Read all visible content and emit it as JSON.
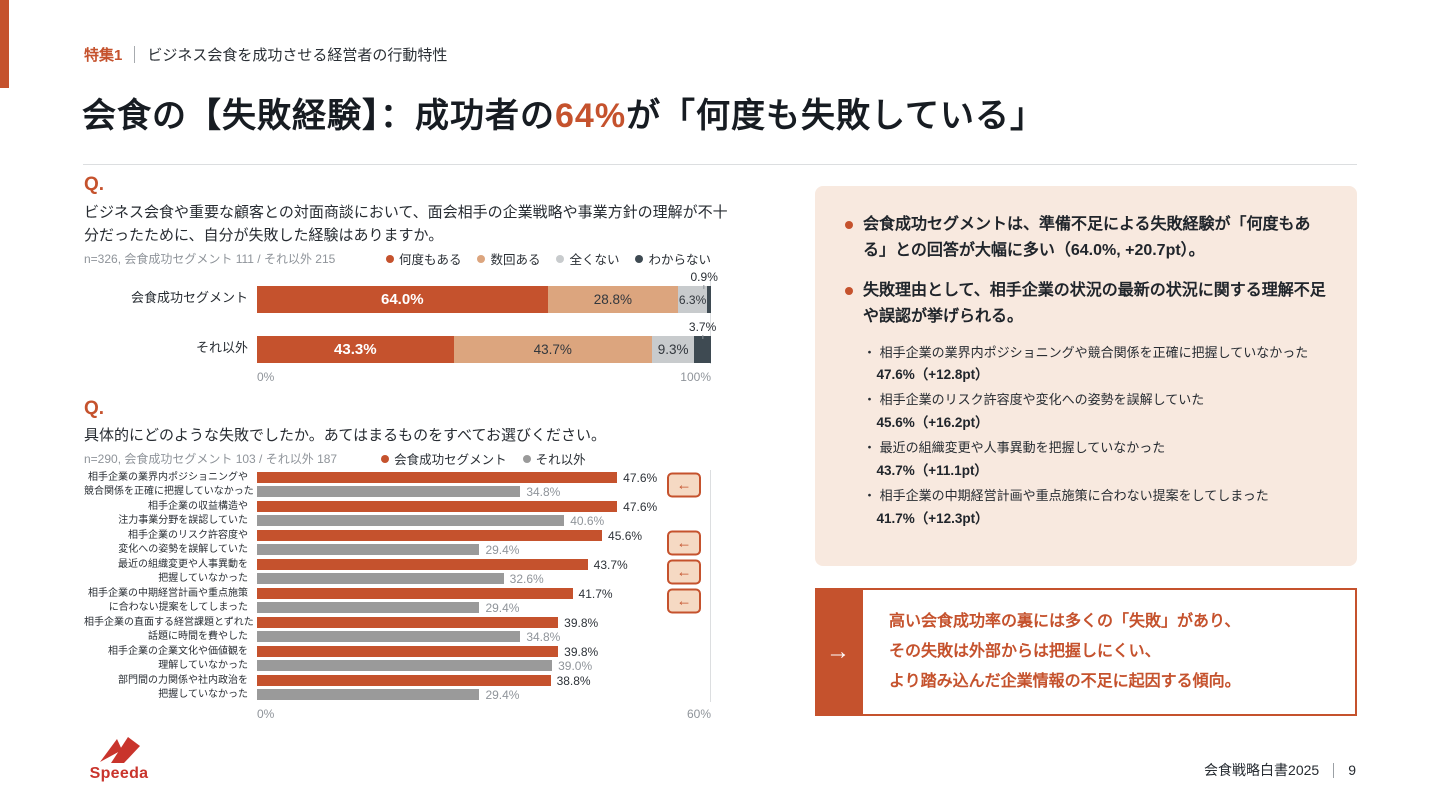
{
  "colors": {
    "accent": "#C5522D",
    "brand_red": "#C9342C",
    "tan": "#DCA57E",
    "light_gray": "#C8CBCD",
    "dark_slate": "#3E4A52",
    "gray_bar": "#9A9A9A",
    "panel_bg": "#F8E9DF"
  },
  "header": {
    "kicker": "特集1",
    "kicker_title": "ビジネス会食を成功させる経営者の行動特性"
  },
  "title": {
    "pre": "会食の【失敗経験】：成功者の",
    "highlight": "64%",
    "post": "が「何度も失敗している」"
  },
  "q1": {
    "label": "Q.",
    "question": "ビジネス会食や重要な顧客との対面商談において、面会相手の企業戦略や事業方針の理解が不十分だったために、自分が失敗した経験はありますか。"
  },
  "q2": {
    "label": "Q.",
    "question": "具体的にどのような失敗でしたか。あてはまるものをすべてお選びください。"
  },
  "chart_data": [
    {
      "type": "bar",
      "subtype": "stacked-horizontal",
      "n_note": "n=326, 会食成功セグメント 111 / それ以外 215",
      "legend": [
        {
          "label": "何度もある",
          "color": "#C5522D"
        },
        {
          "label": "数回ある",
          "color": "#DCA57E"
        },
        {
          "label": "全くない",
          "color": "#C8CBCD"
        },
        {
          "label": "わからない",
          "color": "#3E4A52"
        }
      ],
      "xlim": [
        0,
        100
      ],
      "axis_labels": [
        "0%",
        "100%"
      ],
      "categories": [
        "会食成功セグメント",
        "それ以外"
      ],
      "series": [
        {
          "name": "何度もある",
          "color": "#C5522D",
          "values": [
            64.0,
            43.3
          ]
        },
        {
          "name": "数回ある",
          "color": "#DCA57E",
          "values": [
            28.8,
            43.7
          ]
        },
        {
          "name": "全くない",
          "color": "#C8CBCD",
          "values": [
            6.3,
            9.3
          ]
        },
        {
          "name": "わからない",
          "color": "#3E4A52",
          "values": [
            0.9,
            3.7
          ]
        }
      ],
      "callout_labels": [
        "0.9%",
        "3.7%"
      ]
    },
    {
      "type": "bar",
      "subtype": "grouped-horizontal",
      "n_note": "n=290, 会食成功セグメント 103 / それ以外 187",
      "legend": [
        {
          "label": "会食成功セグメント",
          "color": "#C5522D"
        },
        {
          "label": "それ以外",
          "color": "#9A9A9A"
        }
      ],
      "xlim": [
        0,
        60
      ],
      "axis_labels": [
        "0%",
        "60%"
      ],
      "categories": [
        "相手企業の業界内ポジショニングや\n競合関係を正確に把握していなかった",
        "相手企業の収益構造や\n注力事業分野を誤認していた",
        "相手企業のリスク許容度や\n変化への姿勢を誤解していた",
        "最近の組織変更や人事異動を\n把握していなかった",
        "相手企業の中期経営計画や重点施策\nに合わない提案をしてしまった",
        "相手企業の直面する経営課題とずれた\n話題に時間を費やした",
        "相手企業の企業文化や価値観を\n理解していなかった",
        "部門間の力関係や社内政治を\n把握していなかった"
      ],
      "series": [
        {
          "name": "会食成功セグメント",
          "color": "#C5522D",
          "values": [
            47.6,
            47.6,
            45.6,
            43.7,
            41.7,
            39.8,
            39.8,
            38.8
          ]
        },
        {
          "name": "それ以外",
          "color": "#9A9A9A",
          "values": [
            34.8,
            40.6,
            29.4,
            32.6,
            29.4,
            34.8,
            39.0,
            29.4
          ]
        }
      ],
      "arrow_rows": [
        0,
        2,
        3,
        4
      ],
      "arrow_glyph": "←"
    }
  ],
  "insights": {
    "bullets": [
      {
        "text": "会食成功セグメントは、準備不足による失敗経験が「何度もある」との回答が大幅に多い（64.0%, +20.7pt）。"
      },
      {
        "text": "失敗理由として、相手企業の状況の最新の状況に関する理解不足や誤認が挙げられる。"
      }
    ],
    "reasons": [
      {
        "text": "相手企業の業界内ポジショニングや競合関係を正確に把握していなかった",
        "value": "47.6%（+12.8pt）"
      },
      {
        "text": "相手企業のリスク許容度や変化への姿勢を誤解していた",
        "value": "45.6%（+16.2pt）"
      },
      {
        "text": "最近の組織変更や人事異動を把握していなかった",
        "value": "43.7%（+11.1pt）"
      },
      {
        "text": "相手企業の中期経営計画や重点施策に合わない提案をしてしまった",
        "value": "41.7%（+12.3pt）"
      }
    ]
  },
  "callout": {
    "arrow": "→",
    "lines": [
      "高い会食成功率の裏には多くの「失敗」があり、",
      "その失敗は外部からは把握しにくい、",
      "より踏み込んだ企業情報の不足に起因する傾向。"
    ]
  },
  "footer": {
    "brand": "Speeda",
    "doc_title": "会食戦略白書2025",
    "page": "9"
  }
}
